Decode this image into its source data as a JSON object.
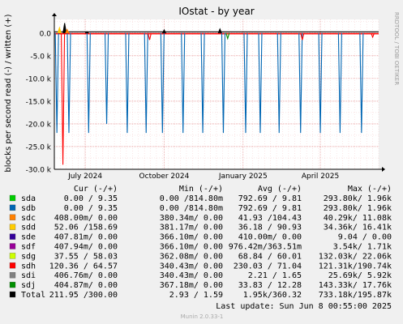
{
  "chart_data": {
    "type": "line",
    "title": "IOstat - by year",
    "ylabel": "blocks per second read (-) / written (+)",
    "side_label": "RRDTOOL / TOBI OETIKER",
    "ylim": [
      -30000,
      3000
    ],
    "yticks": [
      {
        "v": 0,
        "label": "0.0"
      },
      {
        "v": -5000,
        "label": "-5.0 k"
      },
      {
        "v": -10000,
        "label": "-10.0 k"
      },
      {
        "v": -15000,
        "label": "-15.0 k"
      },
      {
        "v": -20000,
        "label": "-20.0 k"
      },
      {
        "v": -25000,
        "label": "-25.0 k"
      },
      {
        "v": -30000,
        "label": "-30.0 k"
      }
    ],
    "x_range": [
      "2024-05-26",
      "2025-06-08"
    ],
    "xticks": [
      {
        "date": "2024-07-01",
        "label": "July 2024"
      },
      {
        "date": "2024-10-01",
        "label": "October 2024"
      },
      {
        "date": "2025-01-01",
        "label": "January 2025"
      },
      {
        "date": "2025-04-01",
        "label": "April 2025"
      }
    ],
    "columns": [
      "Cur (-/+)",
      "Min (-/+)",
      "Avg (-/+)",
      "Max (-/+)"
    ],
    "series": [
      {
        "name": "sda",
        "color": "#00cc00",
        "cur": "0.00 /  9.35",
        "min": "0.00 /814.80m",
        "avg": "792.69 /  9.81",
        "max": "293.80k/  1.96k"
      },
      {
        "name": "sdb",
        "color": "#0066b3",
        "cur": "0.00 /  9.35",
        "min": "0.00 /814.80m",
        "avg": "792.69 /  9.81",
        "max": "293.80k/  1.96k"
      },
      {
        "name": "sdc",
        "color": "#ff8000",
        "cur": "408.00m/  0.00",
        "min": "380.34m/  0.00",
        "avg": "41.93 /104.43",
        "max": "40.29k/ 11.08k"
      },
      {
        "name": "sdd",
        "color": "#ffcc00",
        "cur": "52.06 /158.69",
        "min": "381.17m/  0.00",
        "avg": "36.18 / 90.93",
        "max": "34.36k/ 16.41k"
      },
      {
        "name": "sde",
        "color": "#330099",
        "cur": "407.81m/  0.00",
        "min": "366.10m/  0.00",
        "avg": "410.00m/  0.00",
        "max": "9.04 /  0.00"
      },
      {
        "name": "sdf",
        "color": "#990099",
        "cur": "407.94m/  0.00",
        "min": "366.10m/  0.00",
        "avg": "976.42m/363.51m",
        "max": "3.54k/  1.71k"
      },
      {
        "name": "sdg",
        "color": "#ccff00",
        "cur": "37.55 / 58.03",
        "min": "362.08m/  0.00",
        "avg": "68.84 / 60.01",
        "max": "132.03k/ 22.06k"
      },
      {
        "name": "sdh",
        "color": "#ff0000",
        "cur": "120.36 / 64.57",
        "min": "340.43m/  0.00",
        "avg": "230.03 / 71.04",
        "max": "121.31k/190.74k"
      },
      {
        "name": "sdi",
        "color": "#808080",
        "cur": "406.76m/  0.00",
        "min": "340.43m/  0.00",
        "avg": "2.21 /  1.65",
        "max": "25.69k/  5.92k"
      },
      {
        "name": "sdj",
        "color": "#008f00",
        "cur": "404.87m/  0.00",
        "min": "367.18m/  0.00",
        "avg": "33.83 / 12.28",
        "max": "143.33k/ 17.76k"
      },
      {
        "name": "Total",
        "color": "#000000",
        "cur": "211.95 /300.00",
        "min": "2.93 /  1.59",
        "avg": "1.95k/360.32",
        "max": "733.18k/195.87k"
      }
    ],
    "read_spikes": [
      {
        "date": "2024-05-29",
        "value": -22000,
        "series": "sdb"
      },
      {
        "date": "2024-06-05",
        "value": -29000,
        "series": "sdh"
      },
      {
        "date": "2024-06-12",
        "value": -22000,
        "series": "sdb"
      },
      {
        "date": "2024-07-05",
        "value": -22000,
        "series": "sdb"
      },
      {
        "date": "2024-07-26",
        "value": -20000,
        "series": "sdb"
      },
      {
        "date": "2024-08-19",
        "value": -22000,
        "series": "sdb"
      },
      {
        "date": "2024-09-10",
        "value": -22000,
        "series": "sdb"
      },
      {
        "date": "2024-09-14",
        "value": -1500,
        "series": "sdh"
      },
      {
        "date": "2024-09-29",
        "value": -22000,
        "series": "sdb"
      },
      {
        "date": "2024-10-23",
        "value": -22000,
        "series": "sdb"
      },
      {
        "date": "2024-11-15",
        "value": -22000,
        "series": "sdb"
      },
      {
        "date": "2024-12-09",
        "value": -22000,
        "series": "sdb"
      },
      {
        "date": "2024-12-14",
        "value": -1200,
        "series": "sdj"
      },
      {
        "date": "2025-01-04",
        "value": -22000,
        "series": "sdb"
      },
      {
        "date": "2025-01-21",
        "value": -22000,
        "series": "sdb"
      },
      {
        "date": "2025-02-12",
        "value": -22000,
        "series": "sdb"
      },
      {
        "date": "2025-03-09",
        "value": -22000,
        "series": "sdb"
      },
      {
        "date": "2025-03-11",
        "value": -1500,
        "series": "sdh"
      },
      {
        "date": "2025-04-01",
        "value": -22000,
        "series": "sdb"
      },
      {
        "date": "2025-04-24",
        "value": -22000,
        "series": "sdb"
      },
      {
        "date": "2025-05-19",
        "value": -22000,
        "series": "sdb"
      },
      {
        "date": "2025-06-01",
        "value": -900,
        "series": "sdh"
      }
    ],
    "write_spikes": [
      {
        "date": "2024-06-01",
        "value": 1200,
        "series": "sdd"
      },
      {
        "date": "2024-06-07",
        "value": 2200,
        "series": "Total"
      },
      {
        "date": "2024-06-10",
        "value": 800,
        "series": "sdc"
      },
      {
        "date": "2024-07-03",
        "value": 300,
        "series": "Total"
      },
      {
        "date": "2024-10-01",
        "value": 700,
        "series": "Total"
      },
      {
        "date": "2024-12-05",
        "value": 900,
        "series": "Total"
      }
    ]
  },
  "footer": {
    "last_update": "Last update:  Sun Jun  8 00:55:00 2025",
    "munin_version": "Munin 2.0.33-1"
  }
}
